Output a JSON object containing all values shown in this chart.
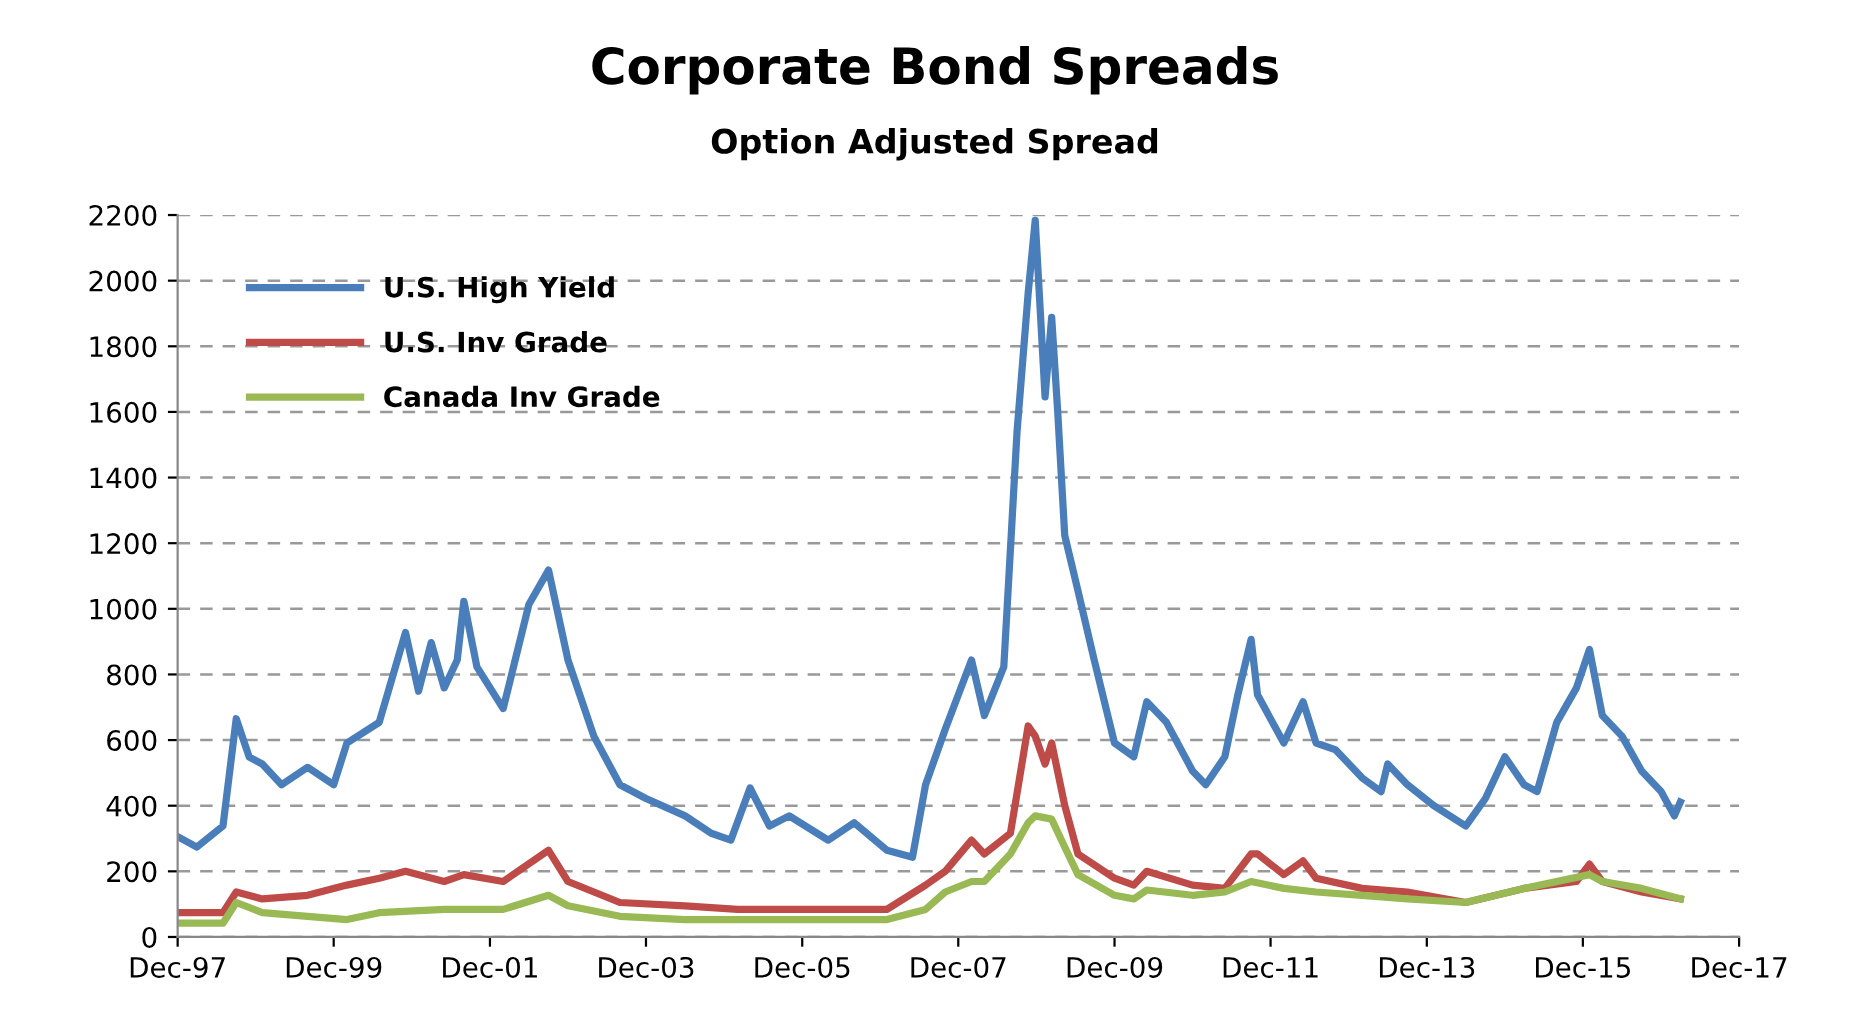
{
  "chart_data": {
    "type": "line",
    "title": "Corporate Bond Spreads",
    "subtitle": "Option Adjusted Spread",
    "xlim": [
      "1997-12",
      "2017-12"
    ],
    "xticks": [
      {
        "value": "1997-12",
        "label": "Dec-97"
      },
      {
        "value": "1999-12",
        "label": "Dec-99"
      },
      {
        "value": "2001-12",
        "label": "Dec-01"
      },
      {
        "value": "2003-12",
        "label": "Dec-03"
      },
      {
        "value": "2005-12",
        "label": "Dec-05"
      },
      {
        "value": "2007-12",
        "label": "Dec-07"
      },
      {
        "value": "2009-12",
        "label": "Dec-09"
      },
      {
        "value": "2011-12",
        "label": "Dec-11"
      },
      {
        "value": "2013-12",
        "label": "Dec-13"
      },
      {
        "value": "2015-12",
        "label": "Dec-15"
      },
      {
        "value": "2017-12",
        "label": "Dec-17"
      }
    ],
    "ylim": [
      0,
      2200
    ],
    "yticks": [
      0,
      200,
      400,
      600,
      800,
      1000,
      1200,
      1400,
      1600,
      1800,
      2000,
      2200
    ],
    "grid": "y",
    "legend": "top left",
    "marker": "none",
    "line_style": "solid",
    "series": [
      {
        "name": "U.S. High Yield",
        "color": "#4a7ebb",
        "x": [
          "1997-12",
          "1998-03",
          "1998-07",
          "1998-09",
          "1998-11",
          "1999-01",
          "1999-04",
          "1999-08",
          "1999-12",
          "2000-02",
          "2000-07",
          "2000-11",
          "2001-01",
          "2001-03",
          "2001-05",
          "2001-07",
          "2001-08",
          "2001-10",
          "2002-02",
          "2002-06",
          "2002-09",
          "2002-12",
          "2003-04",
          "2003-08",
          "2003-12",
          "2004-06",
          "2004-10",
          "2005-01",
          "2005-04",
          "2005-07",
          "2005-10",
          "2006-04",
          "2006-08",
          "2007-01",
          "2007-05",
          "2007-07",
          "2007-10",
          "2008-02",
          "2008-04",
          "2008-07",
          "2008-09",
          "2008-10-23",
          "2008-11-25",
          "2009-01-10",
          "2009-02-10",
          "2009-03-10",
          "2009-04-12",
          "2009-06-13",
          "2009-08-28",
          "2009-12",
          "2010-03",
          "2010-05",
          "2010-08",
          "2010-12",
          "2011-02",
          "2011-05",
          "2011-07",
          "2011-09",
          "2011-10",
          "2012-02",
          "2012-05",
          "2012-07",
          "2012-10",
          "2013-02",
          "2013-05",
          "2013-06",
          "2013-09",
          "2014-01",
          "2014-06",
          "2014-09",
          "2014-12",
          "2015-03",
          "2015-05",
          "2015-08",
          "2015-11",
          "2016-01",
          "2016-03",
          "2016-06",
          "2016-09",
          "2016-12",
          "2017-02",
          "2017-03"
        ],
        "values": [
          306,
          274,
          338,
          665,
          548,
          527,
          464,
          517,
          464,
          591,
          654,
          928,
          749,
          897,
          759,
          844,
          1023,
          823,
          696,
          1013,
          1118,
          844,
          612,
          464,
          422,
          369,
          316,
          295,
          454,
          338,
          369,
          295,
          348,
          264,
          243,
          464,
          633,
          844,
          675,
          823,
          1540,
          1962,
          2184,
          1646,
          1888,
          1603,
          1224,
          1055,
          844,
          591,
          549,
          717,
          654,
          506,
          464,
          549,
          738,
          907,
          738,
          591,
          717,
          591,
          570,
          485,
          443,
          527,
          464,
          401,
          338,
          422,
          549,
          464,
          443,
          654,
          759,
          876,
          675,
          612,
          506,
          443,
          369,
          411
        ]
      },
      {
        "name": "U.S. Inv Grade",
        "color": "#be4b48",
        "x": [
          "1997-12",
          "1998-07",
          "1998-09",
          "1999-01",
          "1999-08",
          "2000-02",
          "2000-07",
          "2000-11",
          "2001-05",
          "2001-08",
          "2002-02",
          "2002-09",
          "2002-12",
          "2003-08",
          "2004-06",
          "2005-02",
          "2005-10",
          "2007-01",
          "2007-07",
          "2007-10",
          "2008-02",
          "2008-04",
          "2008-08",
          "2008-10-23",
          "2008-11-25",
          "2009-01-10",
          "2009-02-10",
          "2009-04-12",
          "2009-06-13",
          "2009-12",
          "2010-03",
          "2010-05",
          "2010-12",
          "2011-05",
          "2011-09",
          "2011-10",
          "2012-02",
          "2012-05",
          "2012-07",
          "2013-02",
          "2013-09",
          "2014-06",
          "2015-03",
          "2015-11",
          "2016-01",
          "2016-03",
          "2016-09",
          "2017-03"
        ],
        "values": [
          74,
          74,
          137,
          116,
          127,
          158,
          179,
          200,
          169,
          190,
          169,
          264,
          169,
          105,
          95,
          84,
          84,
          84,
          158,
          200,
          295,
          253,
          316,
          643,
          612,
          527,
          591,
          401,
          253,
          179,
          158,
          200,
          158,
          148,
          253,
          253,
          190,
          232,
          179,
          148,
          137,
          105,
          148,
          169,
          222,
          169,
          137,
          116
        ]
      },
      {
        "name": "Canada Inv Grade",
        "color": "#98b954",
        "x": [
          "1997-12",
          "1998-07",
          "1998-09",
          "1999-01",
          "1999-08",
          "2000-02",
          "2000-07",
          "2001-05",
          "2002-02",
          "2002-09",
          "2002-12",
          "2003-08",
          "2004-06",
          "2005-02",
          "2005-10",
          "2007-01",
          "2007-07",
          "2007-10",
          "2008-02",
          "2008-04",
          "2008-08",
          "2008-10-23",
          "2008-11-25",
          "2009-02-10",
          "2009-04-12",
          "2009-06-13",
          "2009-12",
          "2010-03",
          "2010-05",
          "2010-12",
          "2011-05",
          "2011-09",
          "2012-02",
          "2012-07",
          "2013-02",
          "2013-09",
          "2014-06",
          "2015-03",
          "2016-01",
          "2016-03",
          "2016-09",
          "2017-03"
        ],
        "values": [
          42,
          42,
          105,
          74,
          63,
          53,
          74,
          84,
          84,
          127,
          95,
          63,
          53,
          53,
          53,
          53,
          84,
          137,
          169,
          169,
          253,
          348,
          369,
          359,
          274,
          190,
          127,
          116,
          143,
          127,
          137,
          169,
          148,
          137,
          127,
          116,
          105,
          148,
          190,
          169,
          148,
          116
        ]
      }
    ]
  }
}
